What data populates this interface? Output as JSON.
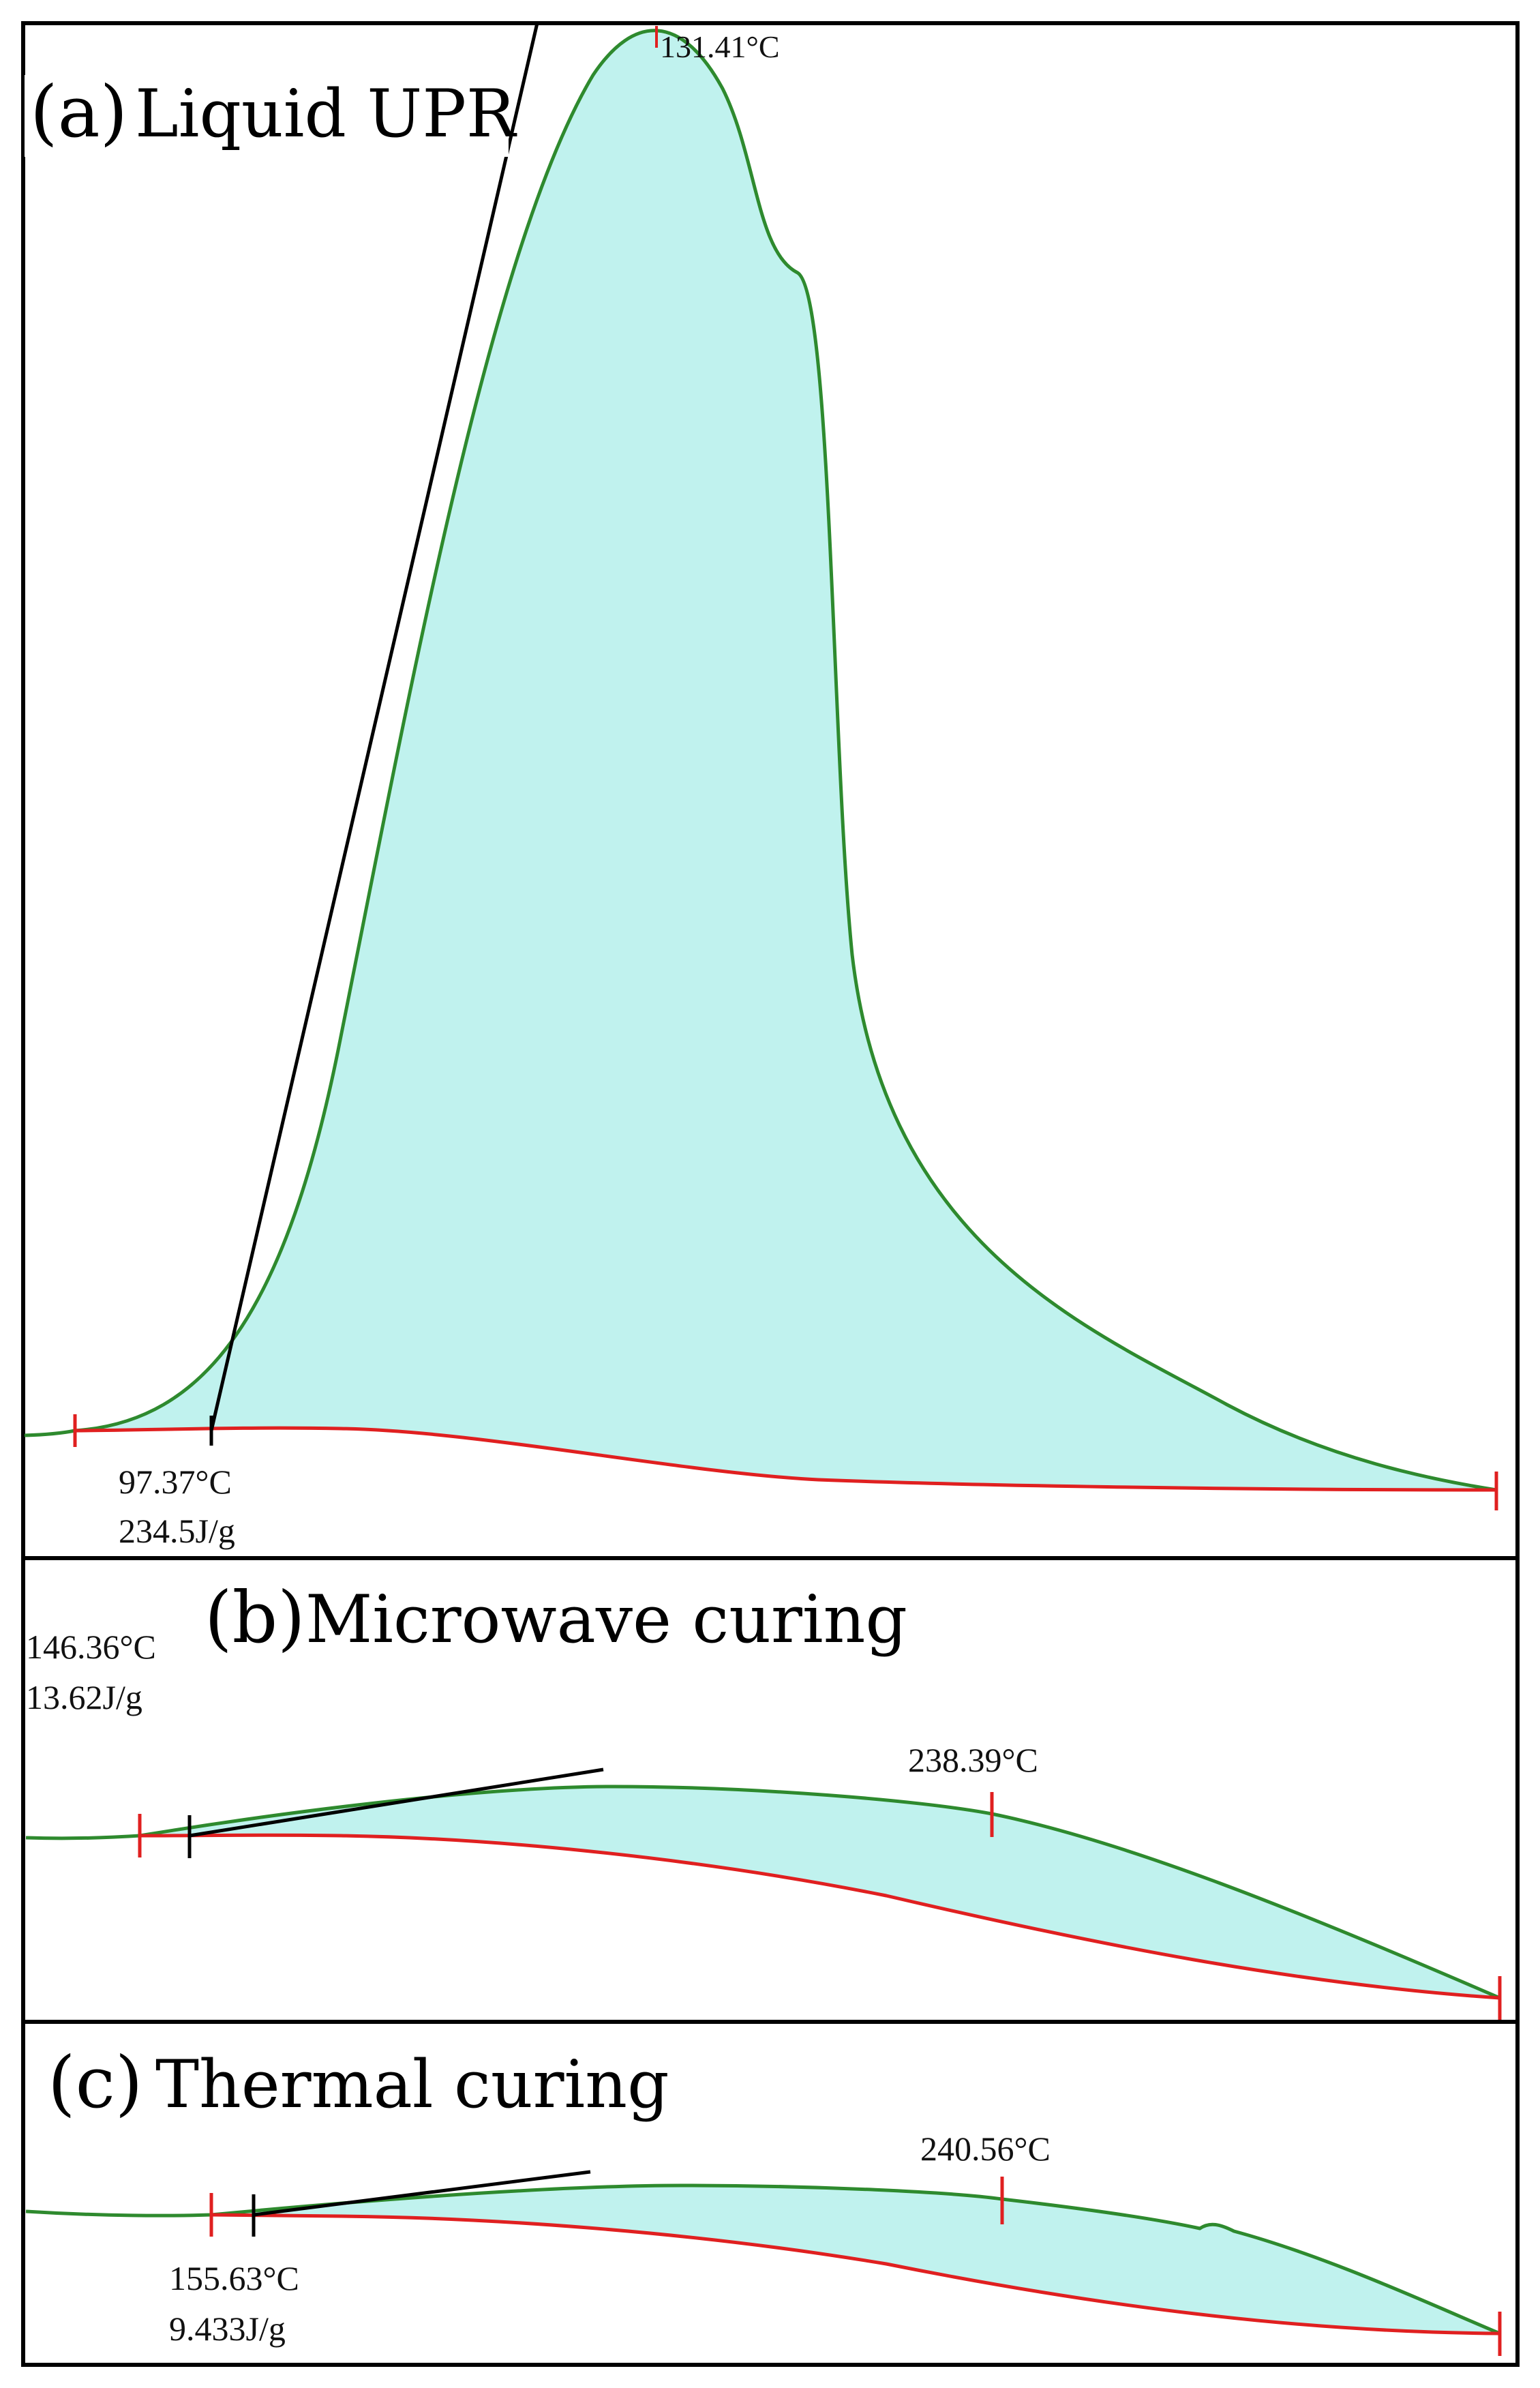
{
  "chart_data": [
    {
      "type": "area",
      "panel": "a",
      "title_letter": "(a)",
      "title_text": "Liquid UPR",
      "peak_temperature_label": "131.41°C",
      "onset_temperature_label": "97.37°C",
      "enthalpy_label": "234.5J/g",
      "onset_temperature_C": 97.37,
      "peak_temperature_C": 131.41,
      "enthalpy_J_per_g": 234.5,
      "colors": {
        "curve": "#2e8a2e",
        "baseline": "#e02020",
        "fill": "#c0f2ee",
        "tangent": "#000000"
      }
    },
    {
      "type": "area",
      "panel": "b",
      "title_letter": "(b)",
      "title_text": "Microwave curing",
      "peak_temperature_label": "238.39°C",
      "onset_temperature_label": "146.36°C",
      "enthalpy_label": "13.62J/g",
      "onset_temperature_C": 146.36,
      "peak_temperature_C": 238.39,
      "enthalpy_J_per_g": 13.62,
      "colors": {
        "curve": "#2e8a2e",
        "baseline": "#e02020",
        "fill": "#c0f2ee",
        "tangent": "#000000"
      }
    },
    {
      "type": "area",
      "panel": "c",
      "title_letter": "(c)",
      "title_text": "Thermal curing",
      "peak_temperature_label": "240.56°C",
      "onset_temperature_label": "155.63°C",
      "enthalpy_label": "9.433J/g",
      "onset_temperature_C": 155.63,
      "peak_temperature_C": 240.56,
      "enthalpy_J_per_g": 9.433,
      "colors": {
        "curve": "#2e8a2e",
        "baseline": "#e02020",
        "fill": "#c0f2ee",
        "tangent": "#000000"
      }
    }
  ]
}
